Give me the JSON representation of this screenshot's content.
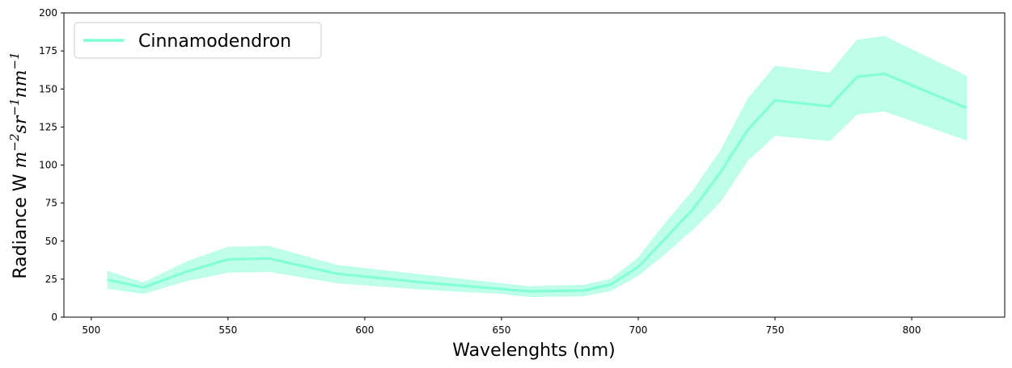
{
  "chart_data": {
    "type": "line",
    "xlabel": "Wavelenghts (nm)",
    "ylabel": {
      "prefix": "Radiance W ",
      "m": "m",
      "m_exp": "−2",
      "sr": "sr",
      "sr_exp": "−1",
      "nm": "nm",
      "nm_exp": "−1"
    },
    "xlim": [
      490,
      834
    ],
    "ylim": [
      0,
      200
    ],
    "xticks": [
      500,
      550,
      600,
      650,
      700,
      750,
      800
    ],
    "yticks": [
      0,
      25,
      50,
      75,
      100,
      125,
      150,
      175,
      200
    ],
    "grid": false,
    "legend_position": "top-left",
    "series": [
      {
        "name": "Cinnamodendron",
        "color": "#7fffd4",
        "x": [
          506,
          519,
          535,
          550,
          565,
          590,
          620,
          650,
          660,
          680,
          690,
          700,
          710,
          720,
          730,
          740,
          750,
          770,
          780,
          790,
          820
        ],
        "y": [
          24.5,
          19.5,
          30,
          38,
          38.5,
          28.5,
          23,
          18.5,
          17,
          17.5,
          21.5,
          33,
          52,
          71,
          95,
          123,
          142.5,
          138.5,
          158,
          160,
          137.5
        ],
        "lower": [
          19,
          15.5,
          24,
          29.5,
          30,
          22.5,
          18.5,
          15.5,
          13.5,
          14,
          17.5,
          27.5,
          42,
          58,
          76,
          103,
          119.5,
          116,
          133.5,
          135.5,
          116.5
        ],
        "upper": [
          30,
          22.5,
          36.5,
          46,
          46.5,
          34,
          28,
          22,
          20,
          21,
          25,
          39,
          62,
          83,
          109,
          143,
          165,
          160.5,
          182,
          184.5,
          158.5
        ]
      }
    ]
  }
}
